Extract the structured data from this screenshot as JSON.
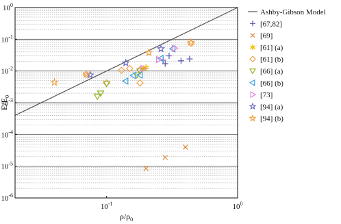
{
  "chart_data": {
    "type": "scatter",
    "title": "",
    "xlabel": "ρ/ρ₀",
    "ylabel": "E/E₀",
    "xscale": "log",
    "yscale": "log",
    "xlim": [
      0.02,
      1
    ],
    "ylim": [
      1e-06,
      1
    ],
    "grid": "horizontal major and minor lines",
    "legend_position": "right",
    "x_ticks": [
      {
        "value": 0.1,
        "base": "10",
        "exp": "-1"
      },
      {
        "value": 1,
        "base": "10",
        "exp": "0"
      }
    ],
    "y_ticks": [
      {
        "value": 1e-06,
        "base": "10",
        "exp": "-6"
      },
      {
        "value": 1e-05,
        "base": "10",
        "exp": "-5"
      },
      {
        "value": 0.0001,
        "base": "10",
        "exp": "-4"
      },
      {
        "value": 0.001,
        "base": "10",
        "exp": "-3"
      },
      {
        "value": 0.01,
        "base": "10",
        "exp": "-2"
      },
      {
        "value": 0.1,
        "base": "10",
        "exp": "-1"
      },
      {
        "value": 1,
        "base": "10",
        "exp": "0"
      }
    ],
    "model_line": {
      "name": "Ashby-Gibson Model",
      "x": [
        0.02,
        1
      ],
      "y": [
        0.0004,
        1
      ],
      "color": "#555555"
    },
    "series": [
      {
        "name": "[67,82]",
        "marker": "plus",
        "color": "#5555aa",
        "x": [
          0.27,
          0.28,
          0.3,
          0.37,
          0.43
        ],
        "y": [
          0.022,
          0.017,
          0.03,
          0.021,
          0.024
        ]
      },
      {
        "name": "[69]",
        "marker": "x",
        "color": "#e08a3c",
        "x": [
          0.2,
          0.28,
          0.4
        ],
        "y": [
          8.5e-06,
          1.9e-05,
          4e-05
        ]
      },
      {
        "name": "[61] (a)",
        "marker": "asterisk",
        "color": "#f5c400",
        "x": [
          0.19,
          0.2
        ],
        "y": [
          0.012,
          0.013
        ]
      },
      {
        "name": "[61] (b)",
        "marker": "diamond",
        "color": "#f0a050",
        "x": [
          0.07,
          0.1,
          0.13,
          0.15,
          0.18,
          0.18,
          0.44
        ],
        "y": [
          0.0078,
          0.0042,
          0.0105,
          0.012,
          0.0042,
          0.011,
          0.075
        ]
      },
      {
        "name": "[66] (a)",
        "marker": "triangle-down",
        "color": "#90b020",
        "x": [
          0.085,
          0.09,
          0.1,
          0.17,
          0.18
        ],
        "y": [
          0.0016,
          0.002,
          0.004,
          0.0075,
          0.01
        ]
      },
      {
        "name": "[66] (b)",
        "marker": "triangle-left",
        "color": "#40a0e0",
        "x": [
          0.14,
          0.16,
          0.18,
          0.26,
          0.32
        ],
        "y": [
          0.0048,
          0.0072,
          0.0075,
          0.025,
          0.05
        ]
      },
      {
        "name": "[73]",
        "marker": "triangle-right",
        "color": "#e080e0",
        "x": [
          0.19,
          0.25,
          0.33
        ],
        "y": [
          0.012,
          0.023,
          0.052
        ]
      },
      {
        "name": "[94] (a)",
        "marker": "star",
        "color": "#6a6ac0",
        "x": [
          0.075,
          0.14,
          0.26
        ],
        "y": [
          0.0075,
          0.018,
          0.05
        ]
      },
      {
        "name": "[94] (b)",
        "marker": "star",
        "color": "#f0a040",
        "x": [
          0.04,
          0.07,
          0.21,
          0.44
        ],
        "y": [
          0.0044,
          0.008,
          0.038,
          0.08
        ]
      }
    ]
  }
}
